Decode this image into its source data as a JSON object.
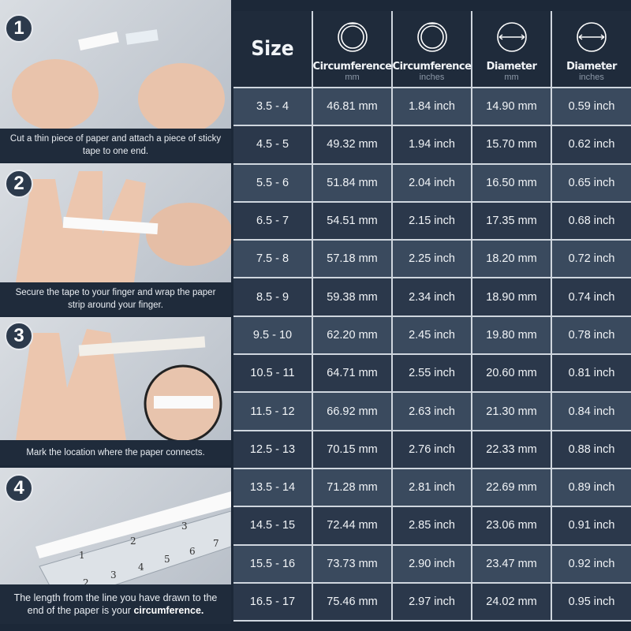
{
  "steps": [
    {
      "number": "1",
      "caption": "Cut a thin piece of paper and attach a piece of sticky tape to one end."
    },
    {
      "number": "2",
      "caption": "Secure the tape to your finger and wrap the paper strip around your finger."
    },
    {
      "number": "3",
      "caption": "Mark the location where the paper connects."
    },
    {
      "number": "4",
      "caption_pre": "The length from the line you have drawn to the end of the paper is your ",
      "caption_bold": "circumference."
    }
  ],
  "ruler_numbers": [
    "1",
    "2",
    "3",
    "4",
    "5",
    "6",
    "7",
    "1",
    "2",
    "3"
  ],
  "table": {
    "headers": [
      {
        "title": "Size",
        "unit": "",
        "icon": ""
      },
      {
        "title": "Circumference",
        "unit": "mm",
        "icon": "ring-circumference-icon"
      },
      {
        "title": "Circumference",
        "unit": "inches",
        "icon": "ring-circumference-icon"
      },
      {
        "title": "Diameter",
        "unit": "mm",
        "icon": "ring-diameter-icon"
      },
      {
        "title": "Diameter",
        "unit": "inches",
        "icon": "ring-diameter-icon"
      }
    ],
    "rows": [
      [
        "3.5 - 4",
        "46.81 mm",
        "1.84 inch",
        "14.90 mm",
        "0.59 inch"
      ],
      [
        "4.5 - 5",
        "49.32 mm",
        "1.94 inch",
        "15.70 mm",
        "0.62 inch"
      ],
      [
        "5.5 - 6",
        "51.84 mm",
        "2.04 inch",
        "16.50 mm",
        "0.65 inch"
      ],
      [
        "6.5 - 7",
        "54.51 mm",
        "2.15 inch",
        "17.35 mm",
        "0.68 inch"
      ],
      [
        "7.5 - 8",
        "57.18 mm",
        "2.25 inch",
        "18.20 mm",
        "0.72 inch"
      ],
      [
        "8.5 - 9",
        "59.38 mm",
        "2.34 inch",
        "18.90 mm",
        "0.74 inch"
      ],
      [
        "9.5 - 10",
        "62.20 mm",
        "2.45 inch",
        "19.80 mm",
        "0.78 inch"
      ],
      [
        "10.5 - 11",
        "64.71 mm",
        "2.55 inch",
        "20.60 mm",
        "0.81 inch"
      ],
      [
        "11.5 - 12",
        "66.92 mm",
        "2.63 inch",
        "21.30 mm",
        "0.84 inch"
      ],
      [
        "12.5 - 13",
        "70.15 mm",
        "2.76 inch",
        "22.33 mm",
        "0.88 inch"
      ],
      [
        "13.5 - 14",
        "71.28 mm",
        "2.81 inch",
        "22.69 mm",
        "0.89 inch"
      ],
      [
        "14.5 - 15",
        "72.44 mm",
        "2.85 inch",
        "23.06 mm",
        "0.91 inch"
      ],
      [
        "15.5 - 16",
        "73.73 mm",
        "2.90 inch",
        "23.47 mm",
        "0.92 inch"
      ],
      [
        "16.5 - 17",
        "75.46 mm",
        "2.97 inch",
        "24.02 mm",
        "0.95 inch"
      ]
    ]
  },
  "colors": {
    "background": "#1c2838",
    "row_light": "#3a4a5e",
    "row_dark": "#2b384b",
    "grid": "#cfd6de"
  }
}
